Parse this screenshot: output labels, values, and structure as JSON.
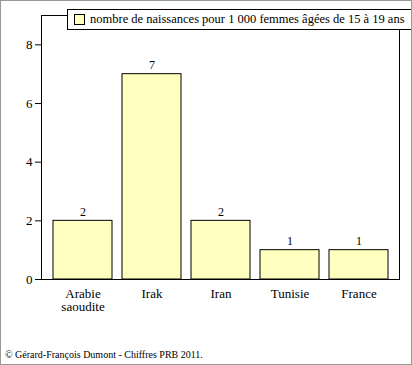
{
  "chart_data": {
    "type": "bar",
    "categories": [
      "Arabie saoudite",
      "Irak",
      "Iran",
      "Tunisie",
      "France"
    ],
    "series": [
      {
        "name": "nombre de naissances pour 1 000 femmes âgées de 15 à 19 ans",
        "color": "#ffffc0",
        "values": [
          2,
          7,
          2,
          1,
          1
        ]
      }
    ],
    "ylim": [
      0,
      9
    ],
    "yticks": [
      0,
      2,
      4,
      6,
      8
    ],
    "grid": false,
    "legend": "top-left",
    "data_labels": true,
    "caption": "© Gérard-François Dumont - Chiffres PRB 2011."
  }
}
